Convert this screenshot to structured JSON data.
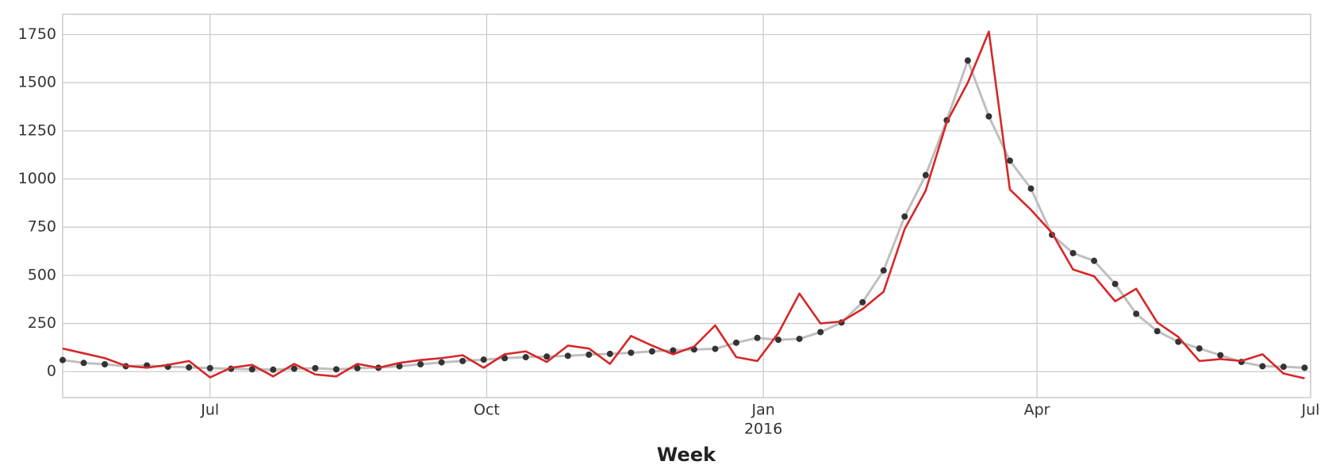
{
  "chart_data": {
    "type": "line",
    "xlabel": "Week",
    "x": [
      "2015-05-13",
      "2015-05-20",
      "2015-05-27",
      "2015-06-03",
      "2015-06-10",
      "2015-06-17",
      "2015-06-24",
      "2015-07-01",
      "2015-07-08",
      "2015-07-15",
      "2015-07-22",
      "2015-07-29",
      "2015-08-05",
      "2015-08-12",
      "2015-08-19",
      "2015-08-26",
      "2015-09-02",
      "2015-09-09",
      "2015-09-16",
      "2015-09-23",
      "2015-09-30",
      "2015-10-07",
      "2015-10-14",
      "2015-10-21",
      "2015-10-28",
      "2015-11-04",
      "2015-11-11",
      "2015-11-18",
      "2015-11-25",
      "2015-12-02",
      "2015-12-09",
      "2015-12-16",
      "2015-12-23",
      "2015-12-30",
      "2016-01-06",
      "2016-01-13",
      "2016-01-20",
      "2016-01-27",
      "2016-02-03",
      "2016-02-10",
      "2016-02-17",
      "2016-02-24",
      "2016-03-02",
      "2016-03-09",
      "2016-03-16",
      "2016-03-23",
      "2016-03-30",
      "2016-04-06",
      "2016-04-13",
      "2016-04-20",
      "2016-04-27",
      "2016-05-04",
      "2016-05-11",
      "2016-05-18",
      "2016-05-25",
      "2016-06-01",
      "2016-06-08",
      "2016-06-15",
      "2016-06-22",
      "2016-06-29"
    ],
    "series": [
      {
        "color": "#bfbfbf",
        "marker_color": "#333333",
        "markers": true,
        "values": [
          60,
          45,
          38,
          28,
          32,
          25,
          22,
          18,
          15,
          12,
          10,
          15,
          18,
          12,
          18,
          20,
          28,
          38,
          48,
          55,
          62,
          70,
          75,
          78,
          82,
          88,
          92,
          98,
          105,
          110,
          115,
          118,
          150,
          175,
          165,
          170,
          205,
          255,
          360,
          525,
          805,
          1020,
          1305,
          1615,
          1325,
          1095,
          950,
          710,
          615,
          575,
          455,
          300,
          210,
          155,
          120,
          85,
          50,
          28,
          25,
          20
        ]
      },
      {
        "color": "#d62728",
        "markers": false,
        "values": [
          120,
          95,
          70,
          30,
          20,
          35,
          55,
          -30,
          20,
          35,
          -25,
          40,
          -15,
          -25,
          40,
          20,
          45,
          60,
          70,
          85,
          20,
          90,
          105,
          50,
          135,
          120,
          40,
          185,
          135,
          90,
          130,
          240,
          75,
          55,
          200,
          405,
          250,
          260,
          325,
          415,
          740,
          940,
          1295,
          1500,
          1765,
          945,
          840,
          720,
          530,
          495,
          365,
          430,
          255,
          180,
          55,
          65,
          55,
          90,
          -10,
          -35
        ]
      }
    ],
    "xlim": [
      "2015-05-13",
      "2016-07-01"
    ],
    "xticks": [
      {
        "value": "2015-07-01",
        "label": "Jul"
      },
      {
        "value": "2015-10-01",
        "label": "Oct"
      },
      {
        "value": "2016-01-01",
        "label": "Jan",
        "sublabel": "2016"
      },
      {
        "value": "2016-04-01",
        "label": "Apr"
      },
      {
        "value": "2016-07-01",
        "label": "Jul"
      }
    ],
    "ylim": [
      -135,
      1855
    ],
    "yticks": [
      0,
      250,
      500,
      750,
      1000,
      1250,
      1500,
      1750
    ],
    "grid": true
  }
}
